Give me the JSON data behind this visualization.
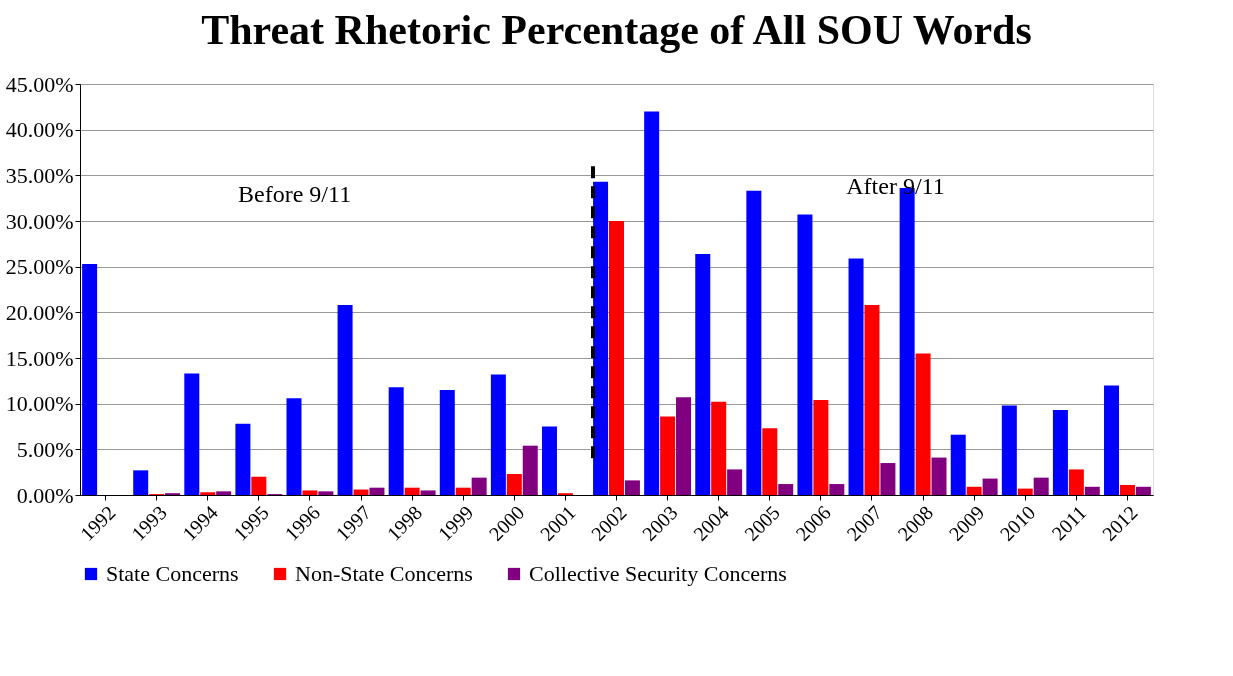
{
  "chart_data": {
    "type": "bar",
    "title": "Threat Rhetoric Percentage of All SOU Words",
    "categories": [
      "1992",
      "1993",
      "1994",
      "1995",
      "1996",
      "1997",
      "1998",
      "1999",
      "2000",
      "2001",
      "2002",
      "2003",
      "2004",
      "2005",
      "2006",
      "2007",
      "2008",
      "2009",
      "2010",
      "2011",
      "2012"
    ],
    "series": [
      {
        "name": "State Concerns",
        "color": "#0000ff",
        "values": [
          25.3,
          2.7,
          13.3,
          7.8,
          10.6,
          20.8,
          11.8,
          11.5,
          13.2,
          7.5,
          34.3,
          42.0,
          26.4,
          33.3,
          30.7,
          25.9,
          33.6,
          6.6,
          9.8,
          9.3,
          12.0
        ]
      },
      {
        "name": "Non-State Concerns",
        "color": "#ff0000",
        "values": [
          0,
          0.1,
          0.3,
          2.0,
          0.5,
          0.6,
          0.8,
          0.8,
          2.3,
          0.2,
          30.0,
          8.6,
          10.2,
          7.3,
          10.4,
          20.8,
          15.5,
          0.9,
          0.7,
          2.8,
          1.1
        ]
      },
      {
        "name": "Collective Security Concerns",
        "color": "#800080",
        "values": [
          0,
          0.2,
          0.4,
          0.1,
          0.4,
          0.8,
          0.5,
          1.9,
          5.4,
          0,
          1.6,
          10.7,
          2.8,
          1.2,
          1.2,
          3.5,
          4.1,
          1.8,
          1.9,
          0.9,
          0.9
        ]
      }
    ],
    "ylim": [
      0,
      45
    ],
    "yticks": [
      {
        "value": 0,
        "label": "0.00%"
      },
      {
        "value": 5,
        "label": "5.00%"
      },
      {
        "value": 10,
        "label": "10.00%"
      },
      {
        "value": 15,
        "label": "15.00%"
      },
      {
        "value": 20,
        "label": "20.00%"
      },
      {
        "value": 25,
        "label": "25.00%"
      },
      {
        "value": 30,
        "label": "30.00%"
      },
      {
        "value": 35,
        "label": "35.00%"
      },
      {
        "value": 40,
        "label": "40.00%"
      },
      {
        "value": 45,
        "label": "45.00%"
      }
    ],
    "grid": "y",
    "legend": "bottom",
    "ref_lines": [
      {
        "axis": "x",
        "value": "2002",
        "color": "#000000",
        "line_style": "dashed"
      }
    ],
    "annotations": [
      "Before 9/11",
      "After 9/11"
    ]
  }
}
